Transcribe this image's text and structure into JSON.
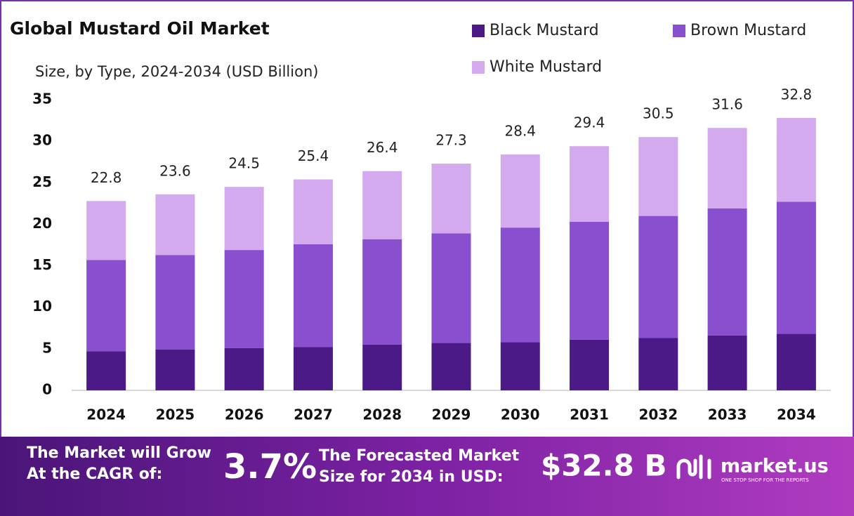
{
  "chart_data": {
    "type": "stacked_bar",
    "title": "Global Mustard Oil Market",
    "subtitle": "Size, by Type, 2024-2034 (USD Billion)",
    "categories": [
      "2024",
      "2025",
      "2026",
      "2027",
      "2028",
      "2029",
      "2030",
      "2031",
      "2032",
      "2033",
      "2034"
    ],
    "series": [
      {
        "name": "Black Mustard",
        "color": "#4c1a87",
        "values": [
          4.7,
          4.9,
          5.1,
          5.2,
          5.5,
          5.7,
          5.8,
          6.1,
          6.3,
          6.6,
          6.8
        ]
      },
      {
        "name": "Brown Mustard",
        "color": "#8a4fce",
        "values": [
          11.0,
          11.4,
          11.8,
          12.4,
          12.7,
          13.2,
          13.8,
          14.2,
          14.7,
          15.3,
          15.9
        ]
      },
      {
        "name": "White Mustard",
        "color": "#d3aaed",
        "values": [
          7.1,
          7.3,
          7.6,
          7.8,
          8.2,
          8.4,
          8.8,
          9.1,
          9.5,
          9.7,
          10.1
        ]
      }
    ],
    "totals": [
      22.8,
      23.6,
      24.5,
      25.4,
      26.4,
      27.3,
      28.4,
      29.4,
      30.5,
      31.6,
      32.8
    ],
    "ylim": [
      0,
      35
    ],
    "yticks": [
      0,
      5,
      10,
      15,
      20,
      25,
      30,
      35
    ],
    "grid": false,
    "legend": "top-right"
  },
  "footer": {
    "cagr_label": [
      "The Market will Grow",
      "At the CAGR of:"
    ],
    "cagr_value": "3.7%",
    "forecast_label": [
      "The Forecasted Market",
      "Size for 2034 in USD:"
    ],
    "forecast_value": "$32.8 B",
    "brand": "market.us",
    "tagline": "ONE STOP SHOP FOR THE REPORTS"
  }
}
